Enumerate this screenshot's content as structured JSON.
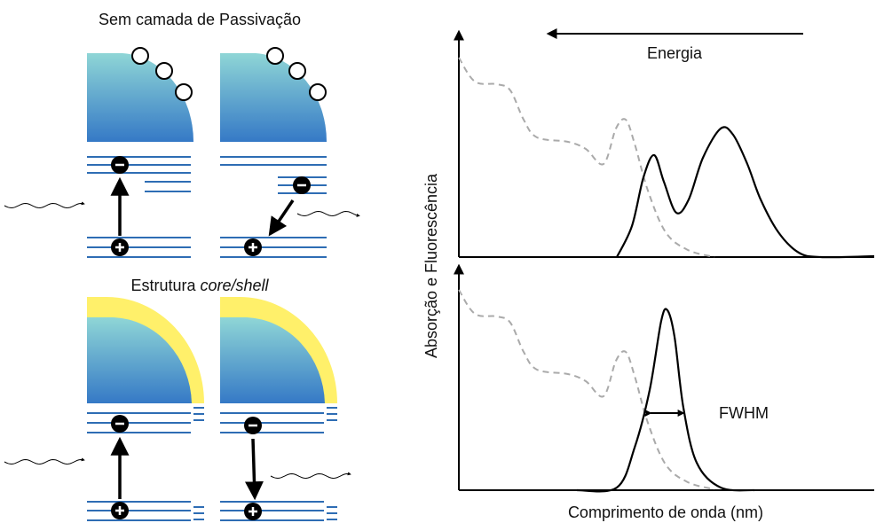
{
  "left": {
    "top_title": "Sem camada de Passivação",
    "bottom_title_prefix": "Estrutura ",
    "bottom_title_italic": "core/shell"
  },
  "right": {
    "energy_label": "Energia",
    "y_axis_label": "Absorção e Fluorescência",
    "fwhm_label": "FWHM",
    "x_axis_label": "Comprimento de onda (nm)"
  }
}
